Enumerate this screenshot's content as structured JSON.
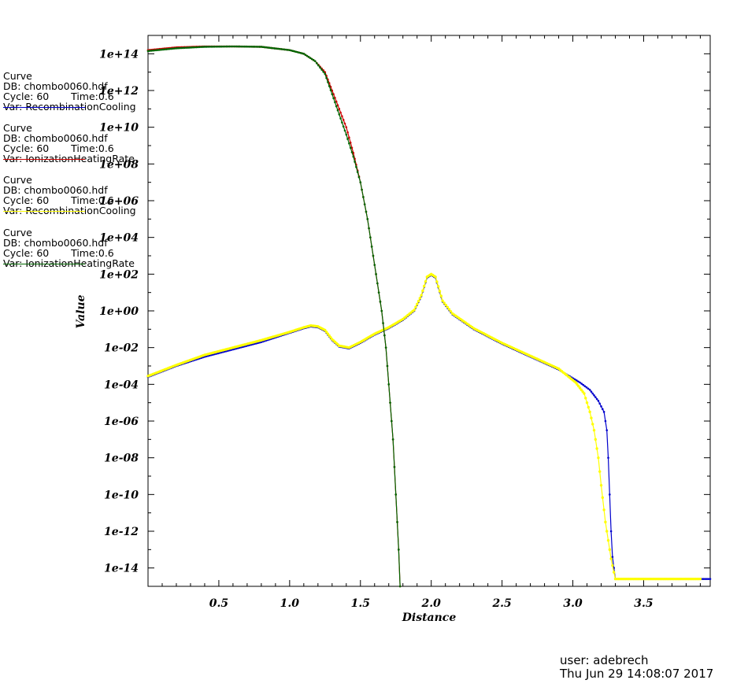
{
  "chart_data": {
    "type": "line",
    "xlabel": "Distance",
    "ylabel": "Value",
    "xlim": [
      0.0,
      3.97
    ],
    "ylim_log10": [
      -15.0,
      15.0
    ],
    "y_scale": "log",
    "grid": false,
    "x_ticks": [
      "0.5",
      "1.0",
      "1.5",
      "2.0",
      "2.5",
      "3.0",
      "3.5"
    ],
    "x_tick_values": [
      0.5,
      1.0,
      1.5,
      2.0,
      2.5,
      3.0,
      3.5
    ],
    "y_ticks": [
      "1e+14",
      "1e+12",
      "1e+10",
      "1e+08",
      "1e+06",
      "1e+04",
      "1e+02",
      "1e+00",
      "1e-02",
      "1e-04",
      "1e-06",
      "1e-08",
      "1e-10",
      "1e-12",
      "1e-14"
    ],
    "y_tick_exponents": [
      14,
      12,
      10,
      8,
      6,
      4,
      2,
      0,
      -2,
      -4,
      -6,
      -8,
      -10,
      -12,
      -14
    ],
    "series": [
      {
        "name": "RecombinationCooling",
        "color": "#0000cc",
        "points": [
          [
            0.0,
            -3.6
          ],
          [
            0.2,
            -3.0
          ],
          [
            0.4,
            -2.5
          ],
          [
            0.6,
            -2.1
          ],
          [
            0.8,
            -1.7
          ],
          [
            1.0,
            -1.2
          ],
          [
            1.1,
            -0.95
          ],
          [
            1.15,
            -0.85
          ],
          [
            1.2,
            -0.9
          ],
          [
            1.25,
            -1.1
          ],
          [
            1.3,
            -1.6
          ],
          [
            1.35,
            -1.95
          ],
          [
            1.42,
            -2.05
          ],
          [
            1.5,
            -1.75
          ],
          [
            1.6,
            -1.3
          ],
          [
            1.7,
            -0.95
          ],
          [
            1.8,
            -0.5
          ],
          [
            1.88,
            0.0
          ],
          [
            1.93,
            0.8
          ],
          [
            1.97,
            1.8
          ],
          [
            2.0,
            1.95
          ],
          [
            2.03,
            1.8
          ],
          [
            2.08,
            0.5
          ],
          [
            2.15,
            -0.2
          ],
          [
            2.3,
            -1.0
          ],
          [
            2.5,
            -1.8
          ],
          [
            2.7,
            -2.5
          ],
          [
            2.9,
            -3.2
          ],
          [
            3.05,
            -3.9
          ],
          [
            3.12,
            -4.3
          ],
          [
            3.18,
            -4.9
          ],
          [
            3.22,
            -5.5
          ],
          [
            3.24,
            -6.5
          ],
          [
            3.25,
            -8.0
          ],
          [
            3.26,
            -10.0
          ],
          [
            3.27,
            -12.0
          ],
          [
            3.28,
            -13.4
          ],
          [
            3.3,
            -14.6
          ],
          [
            3.4,
            -14.6
          ],
          [
            3.6,
            -14.6
          ],
          [
            3.8,
            -14.6
          ],
          [
            3.97,
            -14.6
          ]
        ]
      },
      {
        "name": "IonizationHeatingRate",
        "color": "#cc0000",
        "points": [
          [
            0.0,
            14.2
          ],
          [
            0.2,
            14.35
          ],
          [
            0.4,
            14.4
          ],
          [
            0.6,
            14.4
          ],
          [
            0.8,
            14.38
          ],
          [
            1.0,
            14.2
          ],
          [
            1.1,
            14.0
          ],
          [
            1.18,
            13.6
          ],
          [
            1.25,
            13.0
          ],
          [
            1.3,
            12.0
          ],
          [
            1.35,
            11.0
          ],
          [
            1.4,
            10.0
          ],
          [
            1.45,
            8.6
          ],
          [
            1.5,
            7.0
          ],
          [
            1.55,
            5.0
          ],
          [
            1.6,
            2.5
          ],
          [
            1.65,
            0.0
          ],
          [
            1.68,
            -2.0
          ],
          [
            1.7,
            -4.0
          ],
          [
            1.73,
            -7.0
          ],
          [
            1.75,
            -10.0
          ],
          [
            1.77,
            -13.0
          ],
          [
            1.78,
            -15.0
          ]
        ]
      },
      {
        "name": "RecombinationCooling",
        "color": "#ffff00",
        "points": [
          [
            0.0,
            -3.55
          ],
          [
            0.2,
            -2.95
          ],
          [
            0.4,
            -2.4
          ],
          [
            0.6,
            -2.0
          ],
          [
            0.8,
            -1.6
          ],
          [
            1.0,
            -1.15
          ],
          [
            1.1,
            -0.9
          ],
          [
            1.15,
            -0.8
          ],
          [
            1.2,
            -0.85
          ],
          [
            1.25,
            -1.05
          ],
          [
            1.3,
            -1.55
          ],
          [
            1.35,
            -1.9
          ],
          [
            1.42,
            -2.0
          ],
          [
            1.5,
            -1.7
          ],
          [
            1.6,
            -1.25
          ],
          [
            1.7,
            -0.9
          ],
          [
            1.8,
            -0.45
          ],
          [
            1.88,
            0.05
          ],
          [
            1.93,
            0.85
          ],
          [
            1.97,
            1.85
          ],
          [
            2.0,
            2.0
          ],
          [
            2.03,
            1.85
          ],
          [
            2.08,
            0.55
          ],
          [
            2.15,
            -0.15
          ],
          [
            2.3,
            -0.95
          ],
          [
            2.5,
            -1.75
          ],
          [
            2.7,
            -2.45
          ],
          [
            2.9,
            -3.15
          ],
          [
            3.02,
            -3.9
          ],
          [
            3.08,
            -4.5
          ],
          [
            3.12,
            -5.5
          ],
          [
            3.15,
            -6.5
          ],
          [
            3.18,
            -8.0
          ],
          [
            3.2,
            -9.5
          ],
          [
            3.23,
            -11.5
          ],
          [
            3.25,
            -12.5
          ],
          [
            3.27,
            -13.5
          ],
          [
            3.3,
            -14.6
          ],
          [
            3.5,
            -14.6
          ],
          [
            3.7,
            -14.6
          ],
          [
            3.9,
            -14.6
          ]
        ]
      },
      {
        "name": "IonizationHeatingRate",
        "color": "#006600",
        "points": [
          [
            0.0,
            14.15
          ],
          [
            0.2,
            14.3
          ],
          [
            0.4,
            14.38
          ],
          [
            0.6,
            14.4
          ],
          [
            0.8,
            14.38
          ],
          [
            1.0,
            14.2
          ],
          [
            1.1,
            14.0
          ],
          [
            1.18,
            13.6
          ],
          [
            1.25,
            12.9
          ],
          [
            1.3,
            11.8
          ],
          [
            1.35,
            10.7
          ],
          [
            1.4,
            9.6
          ],
          [
            1.45,
            8.4
          ],
          [
            1.5,
            7.0
          ],
          [
            1.55,
            5.0
          ],
          [
            1.6,
            2.5
          ],
          [
            1.65,
            0.0
          ],
          [
            1.68,
            -2.0
          ],
          [
            1.7,
            -4.0
          ],
          [
            1.73,
            -7.0
          ],
          [
            1.75,
            -10.0
          ],
          [
            1.77,
            -13.0
          ],
          [
            1.78,
            -15.0
          ]
        ]
      }
    ]
  },
  "legend": [
    {
      "l1": "Curve",
      "l2": "DB: chombo0060.hdf",
      "l3": "Cycle: 60       Time:0.6",
      "l4": "Var: RecombinationCooling",
      "color": "#0000cc"
    },
    {
      "l1": "Curve",
      "l2": "DB: chombo0060.hdf",
      "l3": "Cycle: 60       Time:0.6",
      "l4": "Var: IonizationHeatingRate",
      "color": "#cc0000"
    },
    {
      "l1": "Curve",
      "l2": "DB: chombo0060.hdf",
      "l3": "Cycle: 60       Time:0.6",
      "l4": "Var: RecombinationCooling",
      "color": "#ffff00"
    },
    {
      "l1": "Curve",
      "l2": "DB: chombo0060.hdf",
      "l3": "Cycle: 60       Time:0.6",
      "l4": "Var: IonizationHeatingRate",
      "color": "#006600"
    }
  ],
  "footer": {
    "user": "user: adebrech",
    "date": "Thu Jun 29 14:08:07 2017"
  }
}
